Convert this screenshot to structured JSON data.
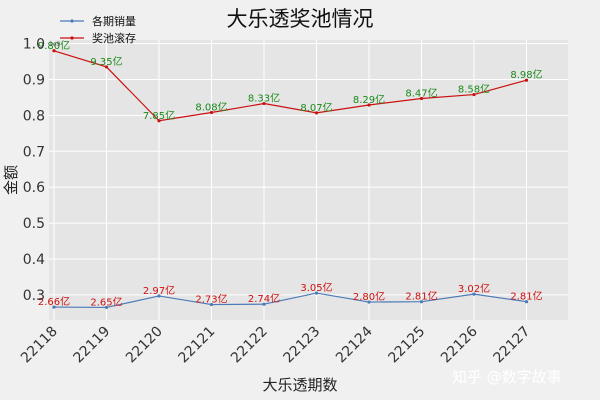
{
  "chart_data": {
    "type": "line",
    "title": "大乐透奖池情况",
    "xlabel": "大乐透期数",
    "ylabel": "金额",
    "y_scale_note": "1e9",
    "categories": [
      "22118",
      "22119",
      "22120",
      "22121",
      "22122",
      "22123",
      "22124",
      "22125",
      "22126",
      "22127"
    ],
    "ylim": [
      0.23,
      1.01
    ],
    "yticks": [
      0.3,
      0.4,
      0.5,
      0.6,
      0.7,
      0.8,
      0.9,
      1.0
    ],
    "ytick_labels": [
      "0.3",
      "0.4",
      "0.5",
      "0.6",
      "0.7",
      "0.8",
      "0.9",
      "1.0"
    ],
    "grid": true,
    "legend_position": "top-left",
    "series": [
      {
        "name": "各期销量",
        "color": "#4a7ab8",
        "values": [
          0.266,
          0.265,
          0.297,
          0.273,
          0.274,
          0.305,
          0.28,
          0.281,
          0.302,
          0.281
        ],
        "labels": [
          "2.66亿",
          "2.65亿",
          "2.97亿",
          "2.73亿",
          "2.74亿",
          "3.05亿",
          "2.80亿",
          "2.81亿",
          "3.02亿",
          "2.81亿"
        ],
        "label_color": "#d01010"
      },
      {
        "name": "奖池滚存",
        "color": "#cc1111",
        "values": [
          0.98,
          0.935,
          0.785,
          0.808,
          0.833,
          0.807,
          0.829,
          0.847,
          0.858,
          0.898
        ],
        "labels": [
          "9.80亿",
          "9.35亿",
          "7.85亿",
          "8.08亿",
          "8.33亿",
          "8.07亿",
          "8.29亿",
          "8.47亿",
          "8.58亿",
          "8.98亿"
        ],
        "label_color": "#1a8a1a"
      }
    ]
  },
  "watermark": "知乎 @数字故事"
}
